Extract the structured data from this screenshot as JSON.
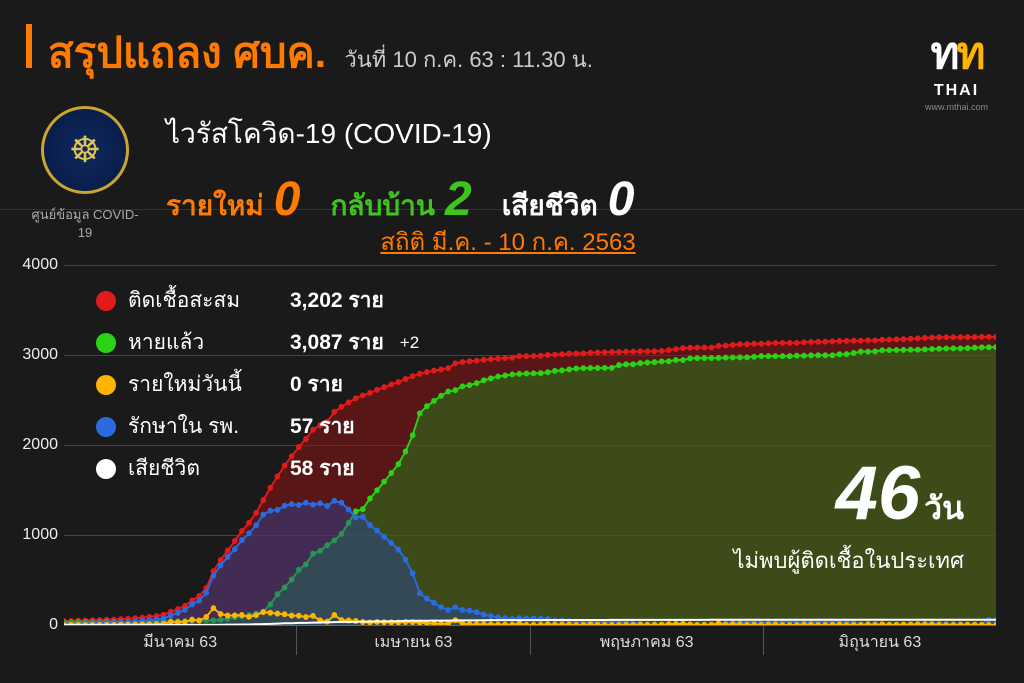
{
  "header": {
    "title": "สรุปแถลง ศบค.",
    "subtitle": "วันที่ 10 ก.ค. 63 : 11.30 น.",
    "covid_label": "ไวรัสโควิด-19 (COVID-19)",
    "emblem_caption": "ศูนย์ข้อมูล COVID-19",
    "summary": [
      {
        "label": "รายใหม่",
        "value": "0",
        "label_color": "#ff7a00",
        "value_color": "#ff7a00"
      },
      {
        "label": "กลับบ้าน",
        "value": "2",
        "label_color": "#3fc41f",
        "value_color": "#3fc41f"
      },
      {
        "label": "เสียชีวิต",
        "value": "0",
        "label_color": "#ffffff",
        "value_color": "#ffffff"
      }
    ],
    "logo": {
      "thai": "THAI",
      "url": "www.mthai.com"
    }
  },
  "chart": {
    "title": "สถิติ มี.ค. - 10 ก.ค. 2563",
    "ylim": [
      0,
      4000
    ],
    "yticks": [
      0,
      1000,
      2000,
      3000,
      4000
    ],
    "grid_color": "#444444",
    "background_color": "#1a1a1a",
    "x_segments": [
      "มีนาคม 63",
      "เมษายน 63",
      "พฤษภาคม 63",
      "มิถุนายน 63"
    ],
    "n_points": 132,
    "series": {
      "confirmed": {
        "color": "#e11b1b",
        "fill": "rgba(140,20,20,0.55)",
        "values": [
          42,
          45,
          48,
          50,
          53,
          55,
          58,
          60,
          65,
          70,
          75,
          82,
          90,
          100,
          114,
          147,
          177,
          212,
          272,
          322,
          411,
          599,
          721,
          827,
          934,
          1045,
          1136,
          1245,
          1388,
          1524,
          1651,
          1771,
          1875,
          1978,
          2067,
          2169,
          2220,
          2258,
          2369,
          2423,
          2473,
          2518,
          2551,
          2579,
          2613,
          2643,
          2672,
          2700,
          2733,
          2765,
          2792,
          2811,
          2826,
          2839,
          2854,
          2907,
          2922,
          2931,
          2938,
          2947,
          2954,
          2960,
          2966,
          2969,
          2987,
          2988,
          2989,
          2992,
          3000,
          3004,
          3009,
          3015,
          3017,
          3018,
          3025,
          3028,
          3031,
          3033,
          3034,
          3037,
          3037,
          3040,
          3040,
          3042,
          3045,
          3054,
          3065,
          3076,
          3081,
          3082,
          3083,
          3084,
          3101,
          3104,
          3112,
          3119,
          3121,
          3125,
          3125,
          3129,
          3134,
          3135,
          3135,
          3135,
          3141,
          3146,
          3147,
          3148,
          3151,
          3156,
          3157,
          3158,
          3158,
          3162,
          3162,
          3169,
          3171,
          3173,
          3176,
          3180,
          3185,
          3190,
          3195,
          3197,
          3197,
          3197,
          3197,
          3198,
          3200,
          3201,
          3202,
          3202
        ]
      },
      "recovered": {
        "color": "#2bd315",
        "fill": "rgba(40,120,30,0.55)",
        "values": [
          28,
          28,
          31,
          31,
          31,
          31,
          33,
          33,
          34,
          34,
          35,
          35,
          37,
          38,
          41,
          42,
          42,
          44,
          44,
          51,
          52,
          52,
          57,
          70,
          88,
          97,
          111,
          127,
          147,
          229,
          342,
          416,
          505,
          612,
          674,
          793,
          824,
          888,
          940,
          1013,
          1135,
          1263,
          1288,
          1405,
          1497,
          1593,
          1689,
          1787,
          1928,
          2108,
          2352,
          2430,
          2490,
          2547,
          2594,
          2609,
          2652,
          2665,
          2687,
          2719,
          2740,
          2761,
          2772,
          2784,
          2790,
          2794,
          2796,
          2798,
          2809,
          2824,
          2829,
          2840,
          2850,
          2854,
          2855,
          2856,
          2857,
          2857,
          2888,
          2897,
          2897,
          2910,
          2916,
          2921,
          2929,
          2931,
          2945,
          2945,
          2963,
          2965,
          2966,
          2966,
          2968,
          2971,
          2972,
          2973,
          2973,
          2981,
          2987,
          2987,
          2987,
          2987,
          2987,
          2993,
          2993,
          2996,
          2997,
          2997,
          2997,
          3008,
          3010,
          3022,
          3038,
          3038,
          3040,
          3053,
          3054,
          3056,
          3057,
          3059,
          3059,
          3062,
          3066,
          3070,
          3072,
          3074,
          3074,
          3077,
          3082,
          3085,
          3086,
          3087
        ]
      },
      "hospitalized": {
        "color": "#2a6be0",
        "fill": "rgba(40,70,160,0.45)",
        "values": [
          14,
          17,
          17,
          19,
          22,
          24,
          25,
          27,
          31,
          36,
          40,
          47,
          53,
          62,
          73,
          105,
          135,
          168,
          228,
          271,
          359,
          547,
          663,
          755,
          843,
          944,
          1018,
          1108,
          1227,
          1271,
          1279,
          1325,
          1343,
          1334,
          1358,
          1337,
          1353,
          1324,
          1380,
          1358,
          1283,
          1196,
          1203,
          1111,
          1050,
          981,
          911,
          838,
          726,
          575,
          356,
          294,
          247,
          198,
          166,
          198,
          166,
          160,
          142,
          116,
          100,
          84,
          77,
          65,
          76,
          72,
          71,
          69,
          65,
          52,
          49,
          44,
          34,
          28,
          33,
          35,
          36,
          37,
          33,
          27,
          24,
          14,
          10,
          8,
          3,
          10,
          7,
          18,
          5,
          0,
          5,
          6,
          21,
          21,
          28,
          34,
          36,
          32,
          26,
          30,
          35,
          36,
          36,
          30,
          36,
          38,
          38,
          39,
          42,
          36,
          35,
          24,
          8,
          12,
          14,
          4,
          5,
          5,
          7,
          9,
          14,
          16,
          17,
          15,
          13,
          11,
          11,
          9,
          6,
          4,
          57,
          57
        ]
      },
      "new_today": {
        "color": "#ffb400",
        "fill": "none",
        "values": [
          0,
          3,
          3,
          2,
          3,
          2,
          3,
          2,
          5,
          5,
          5,
          7,
          8,
          10,
          14,
          33,
          30,
          35,
          60,
          50,
          89,
          188,
          122,
          106,
          107,
          111,
          91,
          109,
          143,
          136,
          127,
          120,
          104,
          103,
          89,
          102,
          51,
          38,
          111,
          54,
          50,
          45,
          33,
          28,
          34,
          30,
          29,
          28,
          33,
          32,
          27,
          19,
          15,
          13,
          15,
          53,
          15,
          9,
          7,
          9,
          7,
          6,
          6,
          3,
          18,
          1,
          1,
          3,
          8,
          4,
          5,
          6,
          2,
          1,
          7,
          3,
          3,
          2,
          1,
          3,
          0,
          3,
          0,
          2,
          3,
          9,
          11,
          11,
          5,
          1,
          1,
          1,
          17,
          3,
          8,
          7,
          2,
          4,
          0,
          4,
          5,
          1,
          0,
          0,
          6,
          5,
          1,
          1,
          3,
          5,
          1,
          1,
          0,
          4,
          0,
          7,
          2,
          2,
          3,
          4,
          5,
          5,
          5,
          2,
          0,
          0,
          0,
          1,
          2,
          1,
          1,
          0
        ]
      },
      "deaths": {
        "color": "#ffffff",
        "fill": "none",
        "values": [
          1,
          1,
          1,
          1,
          1,
          1,
          1,
          1,
          1,
          1,
          1,
          1,
          1,
          1,
          1,
          1,
          1,
          1,
          1,
          1,
          1,
          1,
          1,
          4,
          4,
          5,
          6,
          9,
          10,
          12,
          15,
          19,
          20,
          23,
          24,
          26,
          27,
          30,
          32,
          33,
          34,
          35,
          38,
          39,
          40,
          40,
          41,
          42,
          46,
          47,
          47,
          47,
          48,
          49,
          49,
          51,
          51,
          52,
          52,
          53,
          54,
          54,
          54,
          54,
          54,
          54,
          54,
          54,
          55,
          55,
          56,
          56,
          56,
          56,
          56,
          56,
          56,
          57,
          57,
          57,
          57,
          57,
          57,
          57,
          57,
          57,
          57,
          57,
          57,
          57,
          57,
          58,
          58,
          58,
          58,
          58,
          58,
          58,
          58,
          58,
          58,
          58,
          58,
          58,
          58,
          58,
          58,
          58,
          58,
          58,
          58,
          58,
          58,
          58,
          58,
          58,
          58,
          58,
          58,
          58,
          58,
          58,
          58,
          58,
          58,
          58,
          58,
          58,
          58,
          58,
          58,
          58
        ]
      }
    },
    "legend": [
      {
        "dot": "#e11b1b",
        "label": "ติดเชื้อสะสม",
        "value": "3,202  ราย",
        "extra": ""
      },
      {
        "dot": "#2bd315",
        "label": "หายแล้ว",
        "value": "3,087 ราย",
        "extra": "+2"
      },
      {
        "dot": "#ffb400",
        "label": "รายใหม่วันนี้",
        "value": "0   ราย",
        "extra": ""
      },
      {
        "dot": "#2a6be0",
        "label": "รักษาใน รพ.",
        "value": "57 ราย",
        "extra": ""
      },
      {
        "dot": "#ffffff",
        "label": "เสียชีวิต",
        "value": "58 ราย",
        "extra": ""
      }
    ],
    "big_days": {
      "num": "46",
      "unit": "วัน",
      "caption": "ไม่พบผู้ติดเชื้อในประเทศ"
    }
  }
}
